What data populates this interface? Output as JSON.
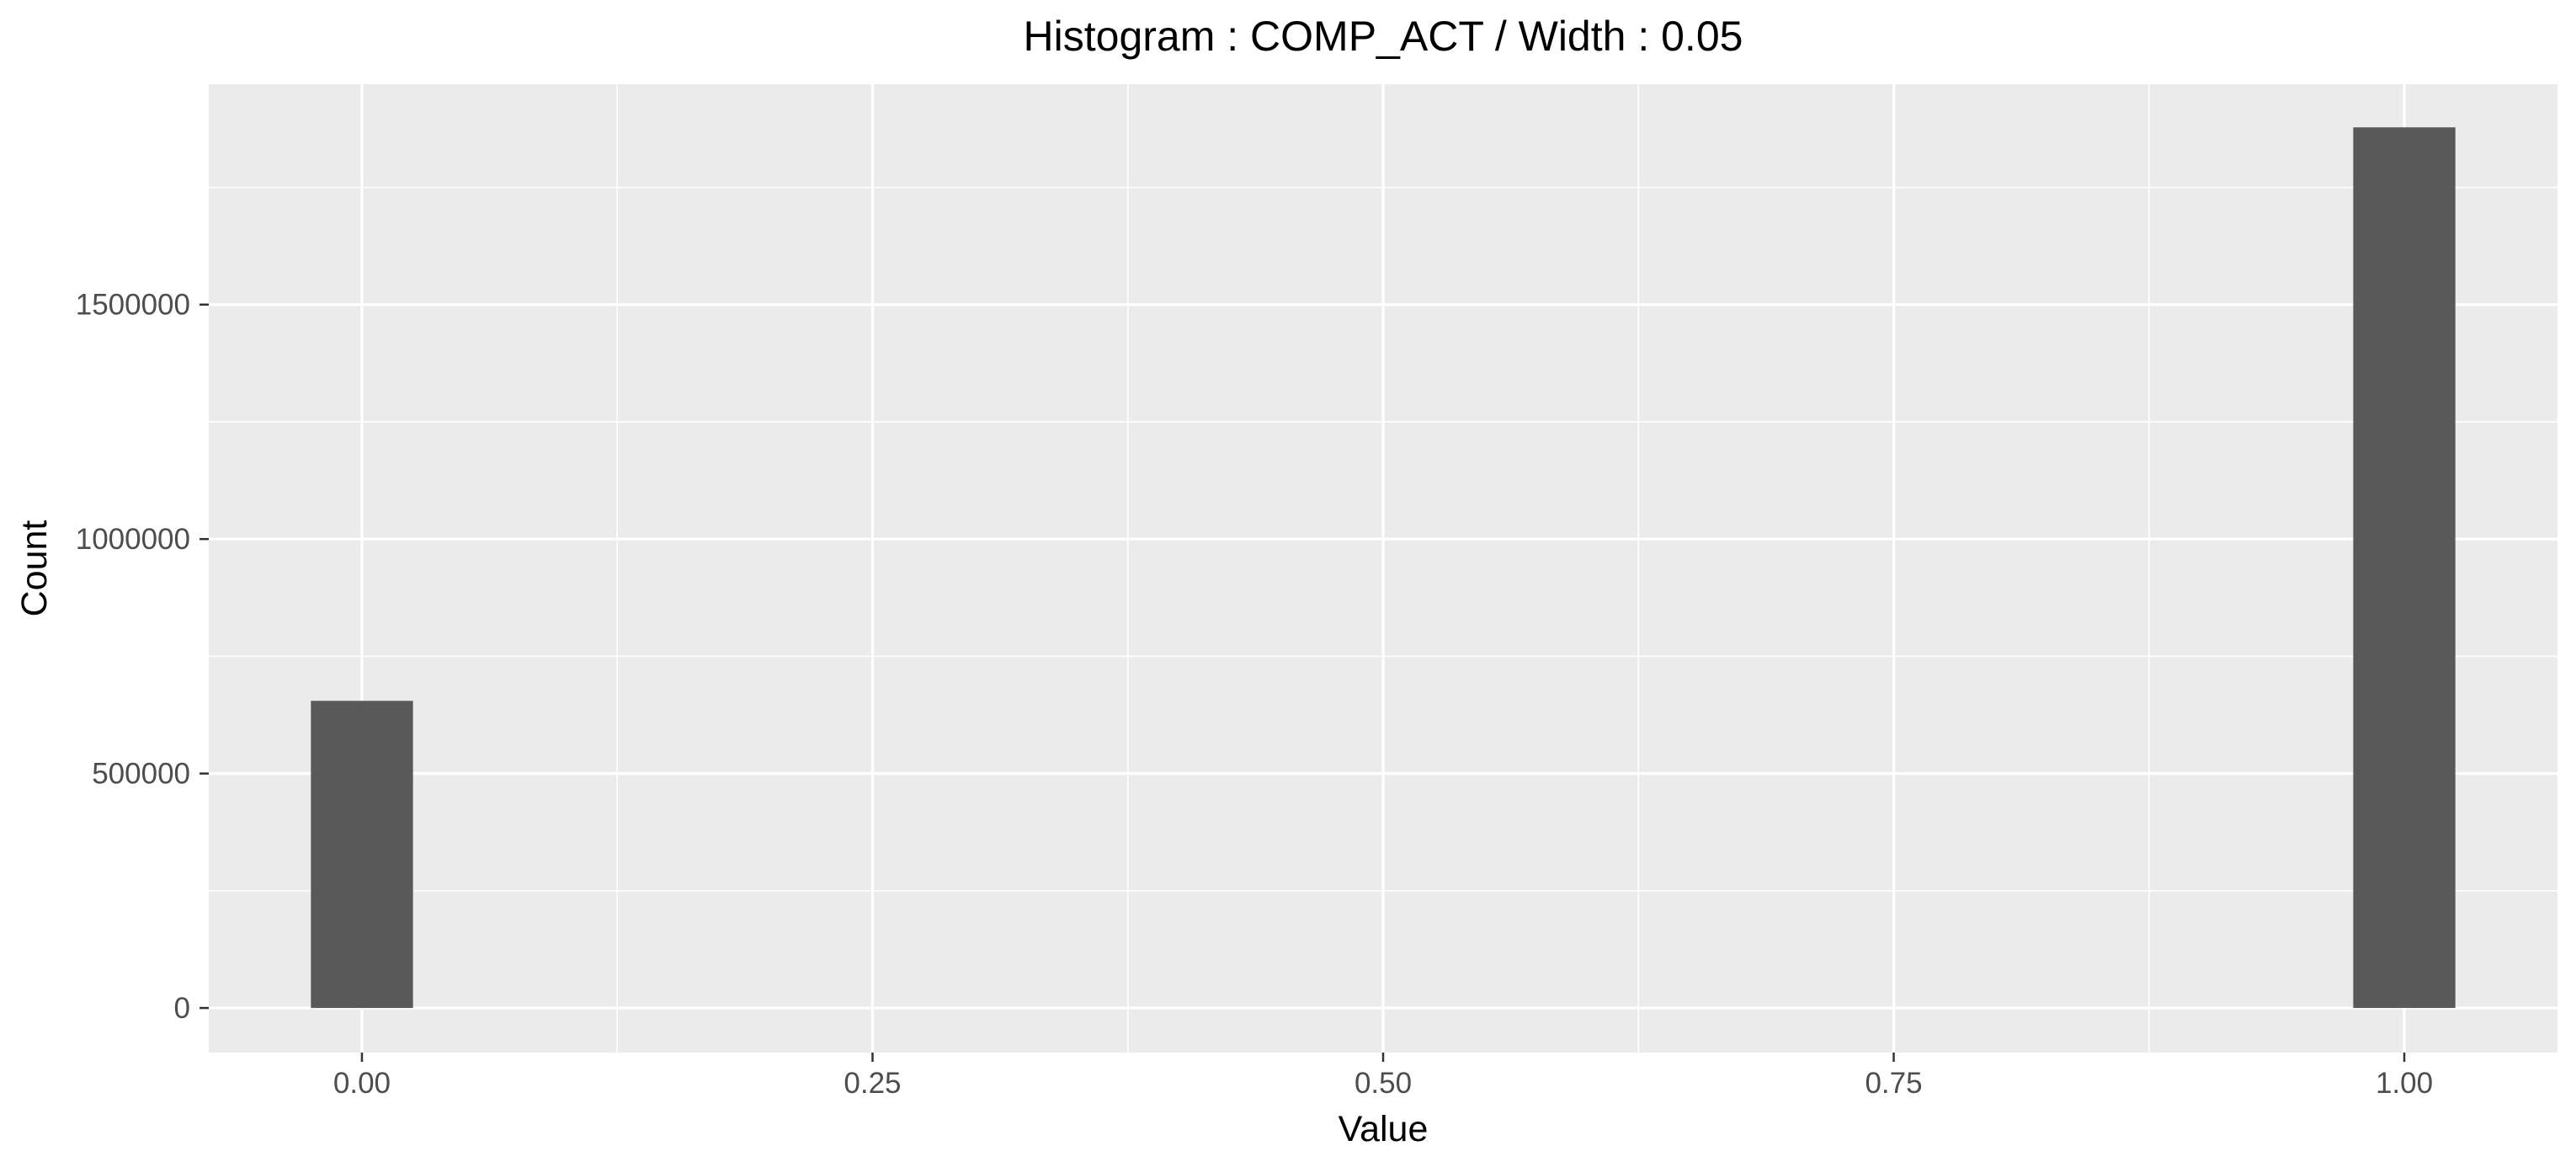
{
  "chart_data": {
    "type": "bar",
    "title": "Histogram : COMP_ACT / Width : 0.05",
    "xlabel": "Value",
    "ylabel": "Count",
    "bin_width": 0.05,
    "bins": [
      {
        "x0": -0.025,
        "x1": 0.025,
        "value": 655000
      },
      {
        "x0": 0.975,
        "x1": 1.025,
        "value": 1878000
      }
    ],
    "xlim": [
      -0.075,
      1.075
    ],
    "ylim": [
      -95000,
      1970000
    ],
    "x_ticks": [
      {
        "value": 0.0,
        "label": "0.00"
      },
      {
        "value": 0.25,
        "label": "0.25"
      },
      {
        "value": 0.5,
        "label": "0.50"
      },
      {
        "value": 0.75,
        "label": "0.75"
      },
      {
        "value": 1.0,
        "label": "1.00"
      }
    ],
    "y_ticks": [
      {
        "value": 0,
        "label": "0"
      },
      {
        "value": 500000,
        "label": "500000"
      },
      {
        "value": 1000000,
        "label": "1000000"
      },
      {
        "value": 1500000,
        "label": "1500000"
      }
    ],
    "grid": true,
    "colors": {
      "panel_background": "#EBEBEB",
      "grid_major": "#FFFFFF",
      "bar_fill": "#595959"
    }
  }
}
